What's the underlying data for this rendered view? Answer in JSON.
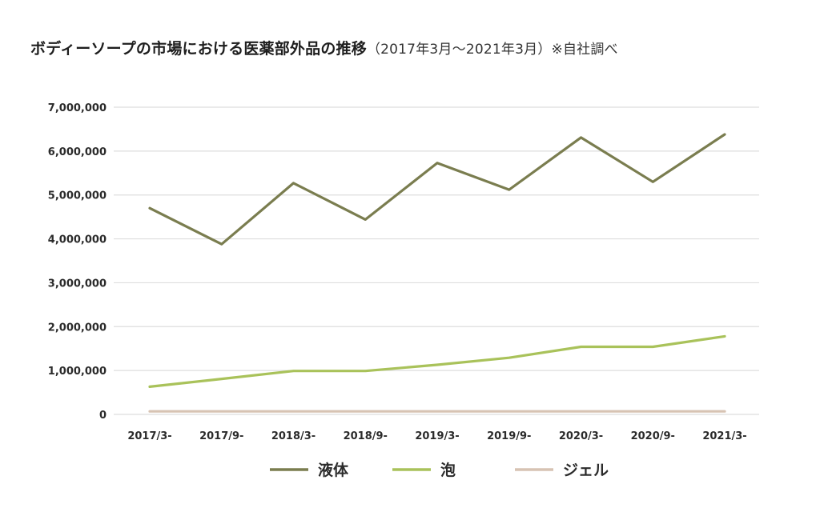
{
  "title": {
    "main": "ボディーソープの市場における医薬部外品の推移",
    "sub": "（2017年3月〜2021年3月）※自社調べ"
  },
  "chart_data": {
    "type": "line",
    "categories": [
      "2017/3-",
      "2017/9-",
      "2018/3-",
      "2018/9-",
      "2019/3-",
      "2019/9-",
      "2020/3-",
      "2020/9-",
      "2021/3-"
    ],
    "y_ticks": [
      "0",
      "1,000,000",
      "2,000,000",
      "3,000,000",
      "4,000,000",
      "5,000,000",
      "6,000,000",
      "7,000,000"
    ],
    "ylim": [
      0,
      7000000
    ],
    "grid": true,
    "legend_position": "bottom",
    "series": [
      {
        "name": "液体",
        "color": "#7a7d4f",
        "values": [
          4700000,
          3880000,
          5270000,
          4440000,
          5730000,
          5120000,
          6310000,
          5300000,
          6380000
        ]
      },
      {
        "name": "泡",
        "color": "#a9c25a",
        "values": [
          630000,
          810000,
          990000,
          990000,
          1130000,
          1290000,
          1540000,
          1540000,
          1780000
        ]
      },
      {
        "name": "ジェル",
        "color": "#d7c3b3",
        "values": [
          70000,
          70000,
          70000,
          70000,
          70000,
          70000,
          70000,
          70000,
          70000
        ]
      }
    ]
  }
}
